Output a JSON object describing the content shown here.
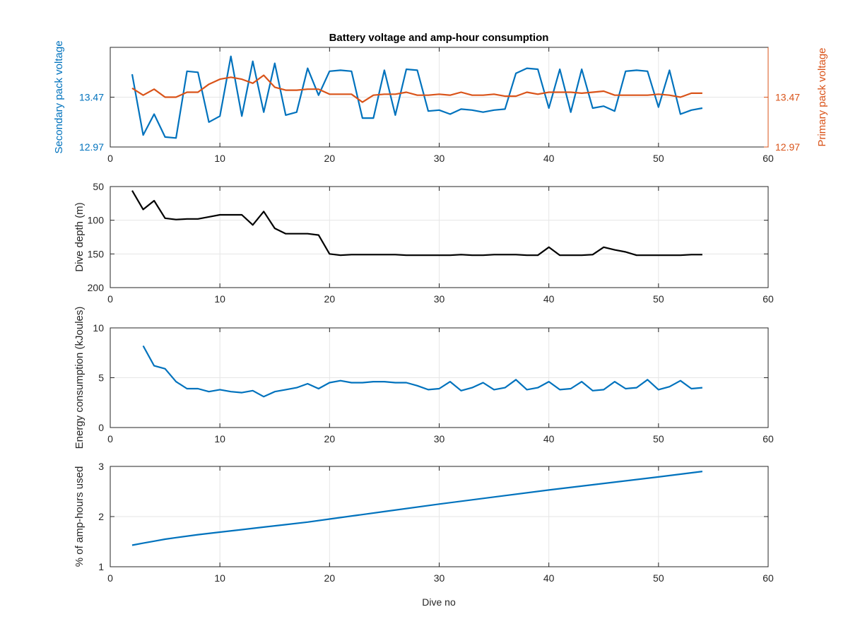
{
  "figure": {
    "title": "Battery voltage and amp-hour consumption",
    "xlabel": "Dive no"
  },
  "colors": {
    "blue": "#0072BD",
    "orange": "#D95319",
    "black": "#000000",
    "grid": "#e6e6e6",
    "axis": "#262626"
  },
  "chart_data": [
    {
      "type": "line",
      "title": "Battery voltage and amp-hour consumption",
      "xlabel": "",
      "ylabel": "Secondary pack voltage",
      "ylabel_right": "Primary pack voltage",
      "xlim": [
        0,
        60
      ],
      "ylim": [
        12.97,
        13.97
      ],
      "ylim_right": [
        12.97,
        13.97
      ],
      "xticks": [
        0,
        10,
        20,
        30,
        40,
        50,
        60
      ],
      "yticks": [
        12.97,
        13.47
      ],
      "yticks_right": [
        12.97,
        13.47
      ],
      "grid": true,
      "series": [
        {
          "axis": "left",
          "color": "#0072BD",
          "x": [
            2,
            3,
            4,
            5,
            6,
            7,
            8,
            9,
            10,
            11,
            12,
            13,
            14,
            15,
            16,
            17,
            18,
            19,
            20,
            21,
            22,
            23,
            24,
            25,
            26,
            27,
            28,
            29,
            30,
            31,
            32,
            33,
            34,
            35,
            36,
            37,
            38,
            39,
            40,
            41,
            42,
            43,
            44,
            45,
            46,
            47,
            48,
            49,
            50,
            51,
            52,
            53,
            54
          ],
          "y": [
            13.7,
            13.09,
            13.3,
            13.07,
            13.06,
            13.73,
            13.72,
            13.22,
            13.28,
            13.88,
            13.28,
            13.83,
            13.32,
            13.81,
            13.29,
            13.32,
            13.76,
            13.49,
            13.73,
            13.74,
            13.73,
            13.26,
            13.26,
            13.74,
            13.29,
            13.75,
            13.74,
            13.33,
            13.34,
            13.3,
            13.35,
            13.34,
            13.32,
            13.34,
            13.35,
            13.71,
            13.76,
            13.75,
            13.36,
            13.75,
            13.32,
            13.75,
            13.36,
            13.38,
            13.33,
            13.73,
            13.74,
            13.73,
            13.37,
            13.74,
            13.3,
            13.34,
            13.36
          ]
        },
        {
          "axis": "right",
          "color": "#D95319",
          "x": [
            2,
            3,
            4,
            5,
            6,
            7,
            8,
            9,
            10,
            11,
            12,
            13,
            14,
            15,
            16,
            17,
            18,
            19,
            20,
            21,
            22,
            23,
            24,
            25,
            26,
            27,
            28,
            29,
            30,
            31,
            32,
            33,
            34,
            35,
            36,
            37,
            38,
            39,
            40,
            41,
            42,
            43,
            44,
            45,
            46,
            47,
            48,
            49,
            50,
            51,
            52,
            53,
            54
          ],
          "y": [
            13.56,
            13.49,
            13.55,
            13.47,
            13.47,
            13.52,
            13.52,
            13.6,
            13.65,
            13.67,
            13.65,
            13.61,
            13.69,
            13.57,
            13.54,
            13.54,
            13.55,
            13.55,
            13.5,
            13.5,
            13.5,
            13.42,
            13.49,
            13.5,
            13.5,
            13.52,
            13.49,
            13.49,
            13.5,
            13.49,
            13.52,
            13.49,
            13.49,
            13.5,
            13.48,
            13.48,
            13.52,
            13.5,
            13.52,
            13.52,
            13.52,
            13.51,
            13.52,
            13.53,
            13.49,
            13.49,
            13.49,
            13.49,
            13.5,
            13.49,
            13.47,
            13.51,
            13.51
          ]
        }
      ]
    },
    {
      "type": "line",
      "xlabel": "",
      "ylabel": "Dive depth (m)",
      "xlim": [
        0,
        60
      ],
      "ylim": [
        -200,
        -50
      ],
      "xticks": [
        0,
        10,
        20,
        30,
        40,
        50,
        60
      ],
      "yticks": [
        -200,
        -150,
        -100,
        -50
      ],
      "ytick_labels": [
        "200",
        "150",
        "100",
        "50"
      ],
      "grid": true,
      "series": [
        {
          "axis": "left",
          "color": "#000000",
          "x": [
            2,
            3,
            4,
            5,
            6,
            7,
            8,
            9,
            10,
            11,
            12,
            13,
            14,
            15,
            16,
            17,
            18,
            19,
            20,
            21,
            22,
            23,
            24,
            25,
            26,
            27,
            28,
            29,
            30,
            31,
            32,
            33,
            34,
            35,
            36,
            37,
            38,
            39,
            40,
            41,
            42,
            43,
            44,
            45,
            46,
            47,
            48,
            49,
            50,
            51,
            52,
            53,
            54
          ],
          "y": [
            -56,
            -84,
            -71,
            -97,
            -99,
            -98,
            -98,
            -95,
            -92,
            -92,
            -92,
            -107,
            -87,
            -112,
            -120,
            -120,
            -120,
            -122,
            -150,
            -152,
            -151,
            -151,
            -151,
            -151,
            -151,
            -152,
            -152,
            -152,
            -152,
            -152,
            -151,
            -152,
            -152,
            -151,
            -151,
            -151,
            -152,
            -152,
            -140,
            -152,
            -152,
            -152,
            -151,
            -140,
            -144,
            -147,
            -152,
            -152,
            -152,
            -152,
            -152,
            -151,
            -151
          ]
        }
      ]
    },
    {
      "type": "line",
      "xlabel": "",
      "ylabel": "Energy consumption (kJoules)",
      "xlim": [
        0,
        60
      ],
      "ylim": [
        0,
        10
      ],
      "xticks": [
        0,
        10,
        20,
        30,
        40,
        50,
        60
      ],
      "yticks": [
        0,
        5,
        10
      ],
      "grid": true,
      "series": [
        {
          "axis": "left",
          "color": "#0072BD",
          "x": [
            3,
            4,
            5,
            6,
            7,
            8,
            9,
            10,
            11,
            12,
            13,
            14,
            15,
            16,
            17,
            18,
            19,
            20,
            21,
            22,
            23,
            24,
            25,
            26,
            27,
            28,
            29,
            30,
            31,
            32,
            33,
            34,
            35,
            36,
            37,
            38,
            39,
            40,
            41,
            42,
            43,
            44,
            45,
            46,
            47,
            48,
            49,
            50,
            51,
            52,
            53,
            54
          ],
          "y": [
            8.2,
            6.2,
            5.9,
            4.6,
            3.9,
            3.9,
            3.6,
            3.8,
            3.6,
            3.5,
            3.7,
            3.1,
            3.6,
            3.8,
            4.0,
            4.4,
            3.9,
            4.5,
            4.7,
            4.5,
            4.5,
            4.6,
            4.6,
            4.5,
            4.5,
            4.2,
            3.8,
            3.9,
            4.6,
            3.7,
            4.0,
            4.5,
            3.8,
            4.0,
            4.8,
            3.8,
            4.0,
            4.6,
            3.8,
            3.9,
            4.6,
            3.7,
            3.8,
            4.6,
            3.9,
            4.0,
            4.8,
            3.8,
            4.1,
            4.7,
            3.9,
            4.0
          ]
        }
      ]
    },
    {
      "type": "line",
      "xlabel": "Dive no",
      "ylabel": "% of amp-hours used",
      "xlim": [
        0,
        60
      ],
      "ylim": [
        1,
        3
      ],
      "xticks": [
        0,
        10,
        20,
        30,
        40,
        50,
        60
      ],
      "yticks": [
        1,
        2,
        3
      ],
      "grid": true,
      "series": [
        {
          "axis": "left",
          "color": "#0072BD",
          "x": [
            2,
            3,
            4,
            5,
            6,
            8,
            10,
            12,
            14,
            16,
            18,
            20,
            25,
            30,
            35,
            40,
            45,
            50,
            54
          ],
          "y": [
            1.43,
            1.47,
            1.51,
            1.55,
            1.58,
            1.64,
            1.69,
            1.74,
            1.79,
            1.84,
            1.89,
            1.95,
            2.1,
            2.25,
            2.39,
            2.53,
            2.66,
            2.79,
            2.9
          ]
        }
      ]
    }
  ]
}
